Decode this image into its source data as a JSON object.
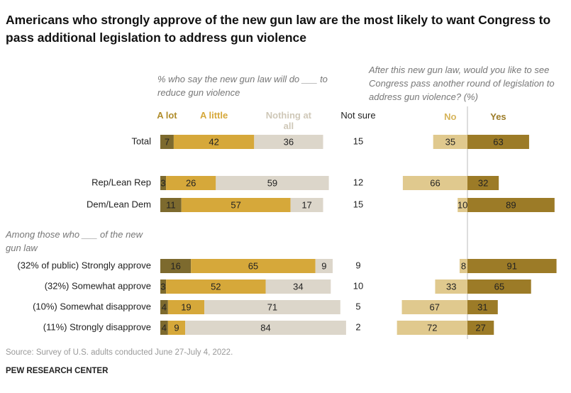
{
  "title": "Americans who strongly approve of the new gun law are the most likely to want Congress to pass additional legislation to address gun violence",
  "source": "Source: Survey of U.S. adults conducted June 27-July 4, 2022.",
  "credit": "PEW RESEARCH CENTER",
  "chart_data": [
    {
      "type": "stacked_bar",
      "subtitle": "% who say the new gun law will do ___ to reduce gun violence",
      "annotation": "Among those who ___ of the new gun law",
      "categories": [
        "Total",
        "Rep/Lean Rep",
        "Dem/Lean Dem",
        "(32% of public) Strongly approve",
        "(32%) Somewhat approve",
        "(10%) Somewhat disapprove",
        "(11%) Strongly disapprove"
      ],
      "series": [
        {
          "name": "A lot",
          "color": "#7d6a2e",
          "values": [
            7,
            3,
            11,
            16,
            3,
            4,
            4
          ]
        },
        {
          "name": "A little",
          "color": "#d6a83a",
          "values": [
            42,
            26,
            57,
            65,
            52,
            19,
            9
          ]
        },
        {
          "name": "Nothing at all",
          "color": "#dcd6ca",
          "values": [
            36,
            59,
            17,
            9,
            34,
            71,
            84
          ]
        }
      ],
      "not_sure": {
        "name": "Not sure",
        "values": [
          15,
          12,
          15,
          9,
          10,
          5,
          2
        ]
      }
    },
    {
      "type": "diverging_bar",
      "subtitle": "After this new gun law, would you like to see Congress pass another round of legislation to address gun violence? (%)",
      "categories": [
        "Total",
        "Rep/Lean Rep",
        "Dem/Lean Dem",
        "(32% of public) Strongly approve",
        "(32%) Somewhat approve",
        "(10%) Somewhat disapprove",
        "(11%) Strongly disapprove"
      ],
      "series": [
        {
          "name": "No",
          "color": "#e0c98e",
          "values": [
            35,
            66,
            10,
            8,
            33,
            67,
            72
          ]
        },
        {
          "name": "Yes",
          "color": "#9c7b27",
          "values": [
            63,
            32,
            89,
            91,
            65,
            31,
            27
          ]
        }
      ]
    }
  ]
}
